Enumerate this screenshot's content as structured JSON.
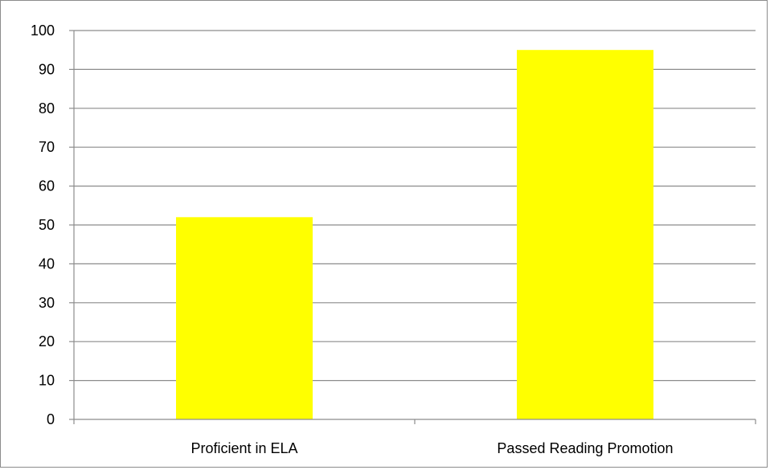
{
  "chart_data": {
    "type": "bar",
    "title": "",
    "xlabel": "",
    "ylabel": "",
    "categories": [
      "Proficient in ELA",
      "Passed Reading Promotion"
    ],
    "values": [
      52,
      95
    ],
    "ylim": [
      0,
      100
    ],
    "yticks": [
      0,
      10,
      20,
      30,
      40,
      50,
      60,
      70,
      80,
      90,
      100
    ],
    "ytick_labels": [
      "0",
      "10",
      "20",
      "30",
      "40",
      "50",
      "60",
      "70",
      "80",
      "90",
      "100"
    ],
    "grid": true,
    "legend": "none",
    "colors": {
      "bar": "#FFFF00",
      "grid": "#8c8c8c",
      "axis": "#8c8c8c",
      "text": "#000000",
      "frame": "#8c8c8c"
    }
  }
}
